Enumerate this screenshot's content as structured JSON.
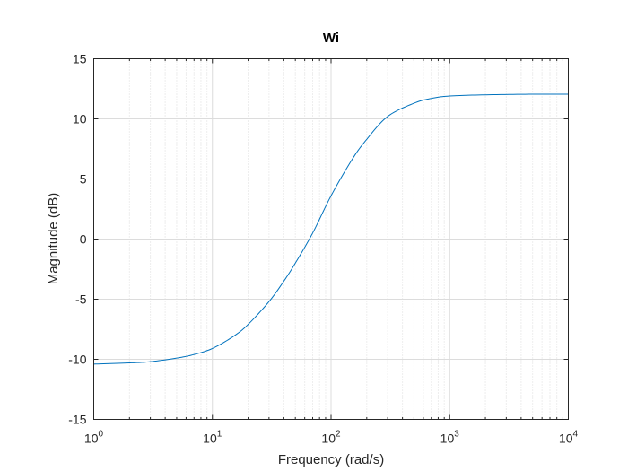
{
  "chart_data": {
    "type": "line",
    "title": "Wi",
    "xlabel": "Frequency  (rad/s)",
    "ylabel": "Magnitude (dB)",
    "x_scale": "log",
    "xlim": [
      1,
      10000
    ],
    "ylim": [
      -15,
      15
    ],
    "grid": true,
    "minor_grid_x": true,
    "x_ticks": [
      {
        "base": "10",
        "exp": "0"
      },
      {
        "base": "10",
        "exp": "1"
      },
      {
        "base": "10",
        "exp": "2"
      },
      {
        "base": "10",
        "exp": "3"
      },
      {
        "base": "10",
        "exp": "4"
      }
    ],
    "y_ticks": [
      "15",
      "10",
      "5",
      "0",
      "-5",
      "-10",
      "-15"
    ],
    "series": [
      {
        "color": "#0072BD",
        "x": [
          1,
          2,
          3,
          5,
          7,
          10,
          15,
          20,
          30,
          40,
          50,
          70,
          100,
          150,
          200,
          300,
          500,
          700,
          1000,
          2000,
          5000,
          10000
        ],
        "y": [
          -10.4,
          -10.3,
          -10.2,
          -9.9,
          -9.6,
          -9.1,
          -8.1,
          -7.1,
          -5.2,
          -3.5,
          -2.0,
          0.5,
          3.6,
          6.6,
          8.3,
          10.2,
          11.3,
          11.7,
          11.9,
          12.0,
          12.05,
          12.05
        ]
      }
    ]
  }
}
